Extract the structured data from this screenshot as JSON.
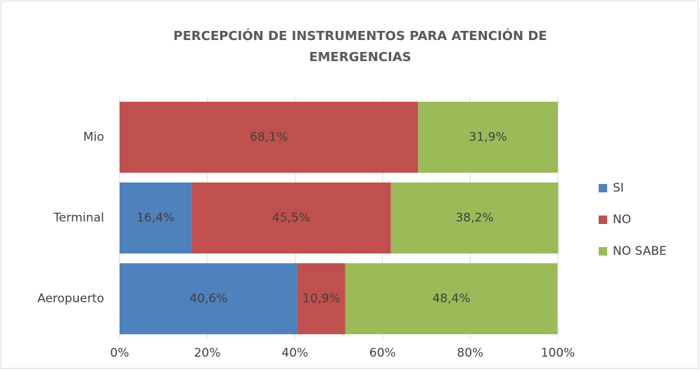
{
  "chart_data": {
    "type": "stacked_barh",
    "title": [
      "PERCEPCIÓN  DE INSTRUMENTOS  PARA ATENCIÓN  DE",
      "EMERGENCIAS"
    ],
    "categories": [
      "Mio",
      "Terminal",
      "Aeropuerto"
    ],
    "series": [
      {
        "name": "SI",
        "color": "#4f81bd",
        "values": [
          null,
          16.4,
          40.6
        ],
        "value_labels": [
          null,
          "16,4%",
          "40,6%"
        ]
      },
      {
        "name": "NO",
        "color": "#c0504d",
        "values": [
          68.1,
          45.5,
          10.9
        ],
        "value_labels": [
          "68,1%",
          "45,5%",
          "10,9%"
        ]
      },
      {
        "name": "NO SABE",
        "color": "#9bbb59",
        "values": [
          31.9,
          38.2,
          48.4
        ],
        "value_labels": [
          "31,9%",
          "38,2%",
          "48,4%"
        ]
      }
    ],
    "xlim": [
      0,
      100
    ],
    "xticks": [
      {
        "value": 0,
        "label": "0%"
      },
      {
        "value": 20,
        "label": "20%"
      },
      {
        "value": 40,
        "label": "40%"
      },
      {
        "value": 60,
        "label": "60%"
      },
      {
        "value": 80,
        "label": "80%"
      },
      {
        "value": 100,
        "label": "100%"
      }
    ],
    "grid": true,
    "legend": "right"
  }
}
